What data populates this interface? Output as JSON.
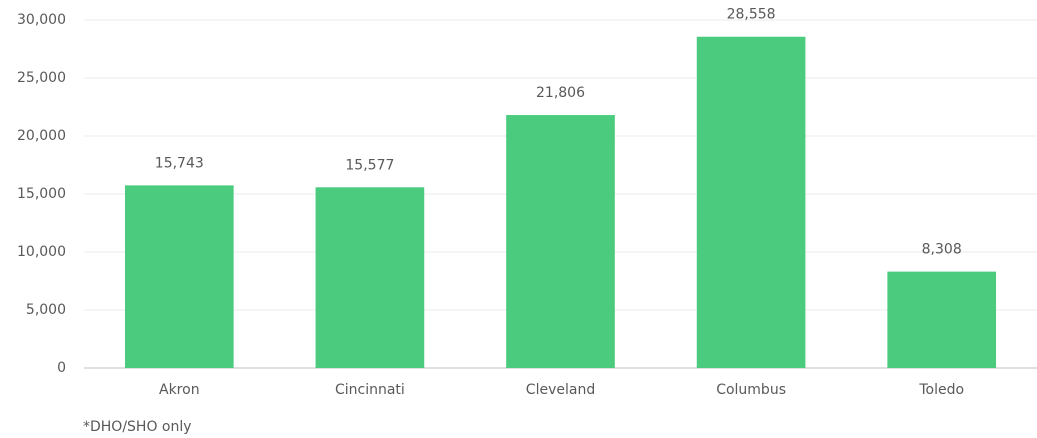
{
  "chart_data": {
    "type": "bar",
    "categories": [
      "Akron",
      "Cincinnati",
      "Cleveland",
      "Columbus",
      "Toledo"
    ],
    "values": [
      15743,
      15577,
      21806,
      28558,
      8308
    ],
    "value_labels": [
      "15,743",
      "15,577",
      "21,806",
      "28,558",
      "8,308"
    ],
    "color": "#4bcb7e",
    "ylim": [
      0,
      30000
    ],
    "yticks": [
      0,
      {
        "value": 5000,
        "label": "5,000"
      },
      {
        "value": 10000,
        "label": "10,000"
      },
      {
        "value": 15000,
        "label": "15,000"
      },
      {
        "value": 20000,
        "label": "20,000"
      },
      {
        "value": 25000,
        "label": "25,000"
      },
      {
        "value": 30000,
        "label": "30,000"
      }
    ],
    "grid": true,
    "annotation": "*DHO/SHO only"
  }
}
